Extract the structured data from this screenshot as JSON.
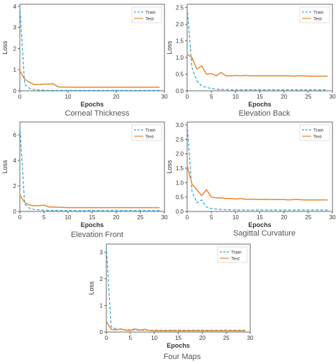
{
  "colors": {
    "train": "#2ca3d6",
    "test": "#e8862a",
    "axis": "#444444",
    "text": "#333333"
  },
  "chart_data": [
    {
      "type": "line",
      "caption": "Corneal Thickness",
      "xlabel": "Epochs",
      "ylabel": "Loss",
      "xlim": [
        0,
        30
      ],
      "ylim": [
        0,
        4.1
      ],
      "xticks": [
        0,
        10,
        20,
        30
      ],
      "yticks": [
        0,
        1,
        2,
        3,
        4
      ],
      "legend": "top-right",
      "grid": false,
      "x": [
        0,
        1,
        2,
        3,
        4,
        5,
        6,
        7,
        8,
        9,
        10,
        11,
        12,
        13,
        14,
        15,
        16,
        17,
        18,
        19,
        20,
        21,
        22,
        23,
        24,
        25,
        26,
        27,
        28,
        29
      ],
      "series": [
        {
          "name": "Train",
          "style": "dashed",
          "values": [
            4.0,
            0.3,
            0.12,
            0.06,
            0.04,
            0.03,
            0.02,
            0.02,
            0.02,
            0.02,
            0.02,
            0.02,
            0.02,
            0.02,
            0.02,
            0.02,
            0.02,
            0.02,
            0.02,
            0.02,
            0.02,
            0.02,
            0.02,
            0.02,
            0.02,
            0.02,
            0.02,
            0.02,
            0.02,
            0.02
          ]
        },
        {
          "name": "Test",
          "style": "solid",
          "values": [
            0.95,
            0.55,
            0.4,
            0.3,
            0.3,
            0.32,
            0.32,
            0.33,
            0.18,
            0.18,
            0.17,
            0.17,
            0.17,
            0.17,
            0.17,
            0.17,
            0.17,
            0.17,
            0.17,
            0.17,
            0.17,
            0.17,
            0.17,
            0.17,
            0.17,
            0.17,
            0.17,
            0.17,
            0.17,
            0.17
          ]
        }
      ]
    },
    {
      "type": "line",
      "caption": "Elevation Back",
      "xlabel": "Epochs",
      "ylabel": "Loss",
      "xlim": [
        0,
        30
      ],
      "ylim": [
        0,
        2.6
      ],
      "xticks": [
        0,
        5,
        10,
        15,
        20,
        25,
        30
      ],
      "yticks": [
        0.0,
        0.5,
        1.0,
        1.5,
        2.0,
        2.5
      ],
      "legend": "top-right",
      "grid": false,
      "x": [
        0,
        1,
        2,
        3,
        4,
        5,
        6,
        7,
        8,
        9,
        10,
        11,
        12,
        13,
        14,
        15,
        16,
        17,
        18,
        19,
        20,
        21,
        22,
        23,
        24,
        25,
        26,
        27,
        28,
        29
      ],
      "series": [
        {
          "name": "Train",
          "style": "dashed",
          "values": [
            2.5,
            0.7,
            0.3,
            0.15,
            0.1,
            0.07,
            0.05,
            0.04,
            0.04,
            0.03,
            0.03,
            0.03,
            0.03,
            0.03,
            0.03,
            0.03,
            0.03,
            0.03,
            0.03,
            0.03,
            0.03,
            0.03,
            0.03,
            0.03,
            0.03,
            0.03,
            0.03,
            0.03,
            0.03,
            0.03
          ]
        },
        {
          "name": "Test",
          "style": "solid",
          "values": [
            1.1,
            1.0,
            0.65,
            0.75,
            0.5,
            0.52,
            0.45,
            0.55,
            0.45,
            0.45,
            0.46,
            0.45,
            0.46,
            0.45,
            0.45,
            0.45,
            0.45,
            0.45,
            0.45,
            0.45,
            0.45,
            0.45,
            0.44,
            0.45,
            0.45,
            0.44,
            0.44,
            0.44,
            0.44,
            0.44
          ]
        }
      ]
    },
    {
      "type": "line",
      "caption": "Elevation Front",
      "xlabel": "Epochs",
      "ylabel": "Loss",
      "xlim": [
        0,
        30
      ],
      "ylim": [
        0,
        7
      ],
      "xticks": [
        0,
        5,
        10,
        15,
        20,
        25,
        30
      ],
      "yticks": [
        0,
        2,
        4,
        6
      ],
      "legend": "top-right",
      "grid": false,
      "x": [
        0,
        1,
        2,
        3,
        4,
        5,
        6,
        7,
        8,
        9,
        10,
        11,
        12,
        13,
        14,
        15,
        16,
        17,
        18,
        19,
        20,
        21,
        22,
        23,
        24,
        25,
        26,
        27,
        28,
        29
      ],
      "series": [
        {
          "name": "Train",
          "style": "dashed",
          "values": [
            6.7,
            0.6,
            0.25,
            0.15,
            0.12,
            0.1,
            0.08,
            0.08,
            0.07,
            0.07,
            0.07,
            0.07,
            0.07,
            0.07,
            0.07,
            0.07,
            0.07,
            0.07,
            0.07,
            0.07,
            0.07,
            0.07,
            0.07,
            0.07,
            0.07,
            0.07,
            0.07,
            0.07,
            0.07,
            0.07
          ]
        },
        {
          "name": "Test",
          "style": "solid",
          "values": [
            1.3,
            0.7,
            0.5,
            0.45,
            0.45,
            0.5,
            0.35,
            0.35,
            0.33,
            0.32,
            0.3,
            0.3,
            0.3,
            0.3,
            0.3,
            0.3,
            0.3,
            0.3,
            0.3,
            0.3,
            0.3,
            0.3,
            0.3,
            0.3,
            0.3,
            0.3,
            0.3,
            0.3,
            0.3,
            0.3
          ]
        }
      ]
    },
    {
      "type": "line",
      "caption": "Sagittal Curvature",
      "xlabel": "Epochs",
      "ylabel": "Loss",
      "xlim": [
        0,
        30
      ],
      "ylim": [
        0,
        3.1
      ],
      "xticks": [
        0,
        5,
        10,
        15,
        20,
        25,
        30
      ],
      "yticks": [
        0.0,
        0.5,
        1.0,
        1.5,
        2.0,
        2.5,
        3.0
      ],
      "legend": "top-right",
      "grid": false,
      "x": [
        0,
        1,
        2,
        3,
        4,
        5,
        6,
        7,
        8,
        9,
        10,
        11,
        12,
        13,
        14,
        15,
        16,
        17,
        18,
        19,
        20,
        21,
        22,
        23,
        24,
        25,
        26,
        27,
        28,
        29
      ],
      "series": [
        {
          "name": "Train",
          "style": "dashed",
          "values": [
            3.0,
            0.7,
            0.3,
            0.4,
            0.15,
            0.1,
            0.08,
            0.07,
            0.06,
            0.06,
            0.05,
            0.05,
            0.05,
            0.05,
            0.05,
            0.05,
            0.05,
            0.05,
            0.05,
            0.05,
            0.05,
            0.05,
            0.05,
            0.05,
            0.05,
            0.05,
            0.05,
            0.05,
            0.05,
            0.05
          ]
        },
        {
          "name": "Test",
          "style": "solid",
          "values": [
            1.6,
            0.95,
            0.75,
            0.55,
            0.75,
            0.5,
            0.47,
            0.47,
            0.45,
            0.45,
            0.43,
            0.45,
            0.42,
            0.42,
            0.42,
            0.41,
            0.42,
            0.41,
            0.41,
            0.41,
            0.41,
            0.4,
            0.41,
            0.41,
            0.4,
            0.4,
            0.4,
            0.4,
            0.4,
            0.4
          ]
        }
      ]
    },
    {
      "type": "line",
      "caption": "Four Maps",
      "xlabel": "Epochs",
      "ylabel": "Loss",
      "xlim": [
        0,
        30
      ],
      "ylim": [
        0,
        3.3
      ],
      "xticks": [
        0,
        5,
        10,
        15,
        20,
        25,
        30
      ],
      "yticks": [
        0,
        1,
        2,
        3
      ],
      "legend": "top-right",
      "grid": false,
      "x": [
        0,
        1,
        2,
        3,
        4,
        5,
        6,
        7,
        8,
        9,
        10,
        11,
        12,
        13,
        14,
        15,
        16,
        17,
        18,
        19,
        20,
        21,
        22,
        23,
        24,
        25,
        26,
        27,
        28,
        29
      ],
      "series": [
        {
          "name": "Train",
          "style": "dashed",
          "values": [
            3.2,
            0.2,
            0.12,
            0.1,
            0.09,
            0.08,
            0.08,
            0.07,
            0.07,
            0.07,
            0.07,
            0.07,
            0.07,
            0.07,
            0.07,
            0.07,
            0.07,
            0.07,
            0.07,
            0.07,
            0.07,
            0.07,
            0.07,
            0.07,
            0.07,
            0.07,
            0.07,
            0.07,
            0.07,
            0.07
          ]
        },
        {
          "name": "Test",
          "style": "solid",
          "values": [
            0.4,
            0.1,
            0.08,
            0.12,
            0.07,
            0.06,
            0.12,
            0.07,
            0.1,
            0.06,
            0.05,
            0.05,
            0.05,
            0.05,
            0.05,
            0.05,
            0.05,
            0.05,
            0.05,
            0.05,
            0.05,
            0.05,
            0.05,
            0.05,
            0.05,
            0.05,
            0.05,
            0.05,
            0.05,
            0.05
          ]
        }
      ]
    }
  ]
}
